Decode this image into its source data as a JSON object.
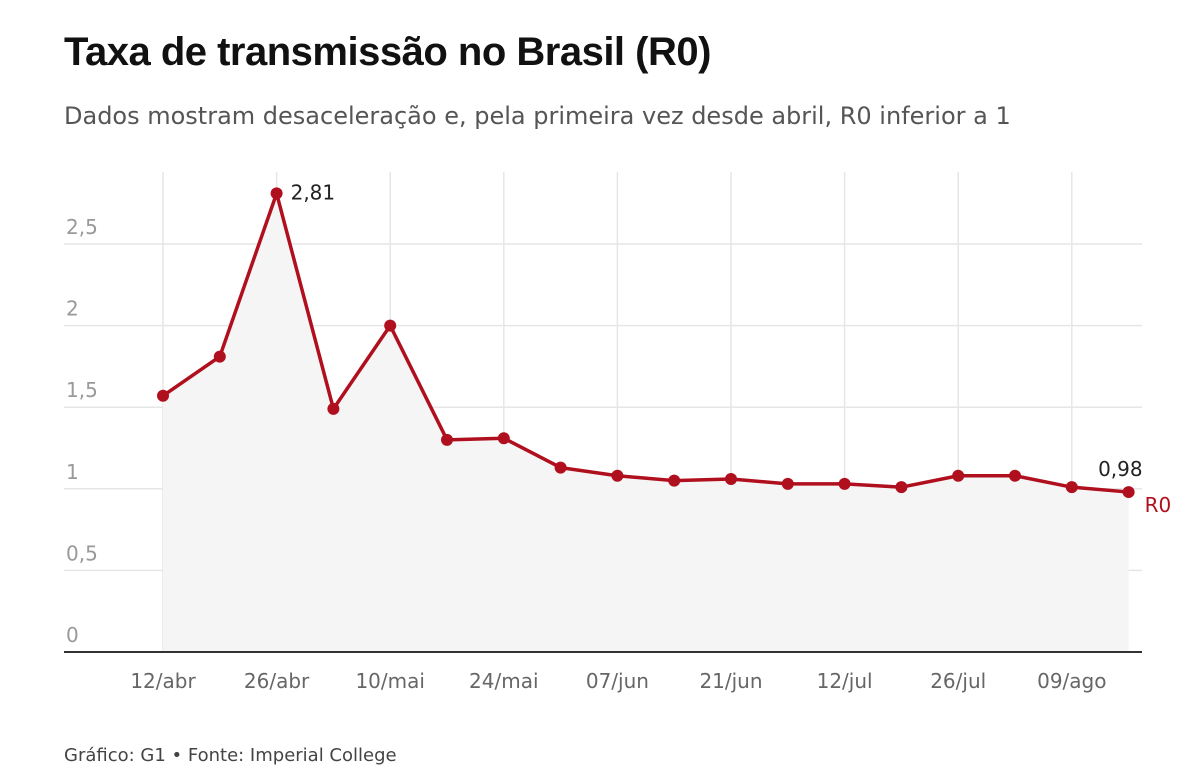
{
  "title": "Taxa de transmissão no Brasil (R0)",
  "subtitle": "Dados mostram desaceleração e, pela primeira vez desde abril, R0 inferior a 1",
  "footer": "Gráfico: G1 • Fonte: Imperial College",
  "chart_data": {
    "type": "area",
    "title": "Taxa de transmissão no Brasil (R0)",
    "subtitle": "Dados mostram desaceleração e, pela primeira vez desde abril, R0 inferior a 1",
    "xlabel": "",
    "ylabel": "",
    "ylim": [
      0,
      2.9
    ],
    "yticks": [
      0,
      0.5,
      1,
      1.5,
      2,
      2.5
    ],
    "ytick_labels": [
      "0",
      "0,5",
      "1",
      "1,5",
      "2",
      "2,5"
    ],
    "grid": "vertical and horizontal",
    "x_tick_labels": [
      "12/abr",
      "26/abr",
      "10/mai",
      "24/mai",
      "07/jun",
      "21/jun",
      "12/jul",
      "26/jul",
      "09/ago"
    ],
    "x_tick_indices": [
      0,
      2,
      4,
      6,
      8,
      10,
      12,
      14,
      16
    ],
    "series": [
      {
        "name": "R0",
        "color": "#b00f1e",
        "values": [
          1.57,
          1.81,
          2.81,
          1.49,
          2.0,
          1.3,
          1.31,
          1.13,
          1.08,
          1.05,
          1.06,
          1.03,
          1.03,
          1.01,
          1.08,
          1.08,
          1.01,
          0.98
        ]
      }
    ],
    "annotations": [
      {
        "index": 2,
        "text": "2,81"
      },
      {
        "index": 17,
        "text": "0,98"
      }
    ],
    "series_label": "R0",
    "colors": {
      "line": "#b00f1e",
      "fill": "#f5f5f5",
      "grid": "#e6e6e6",
      "axis": "#333333"
    }
  }
}
